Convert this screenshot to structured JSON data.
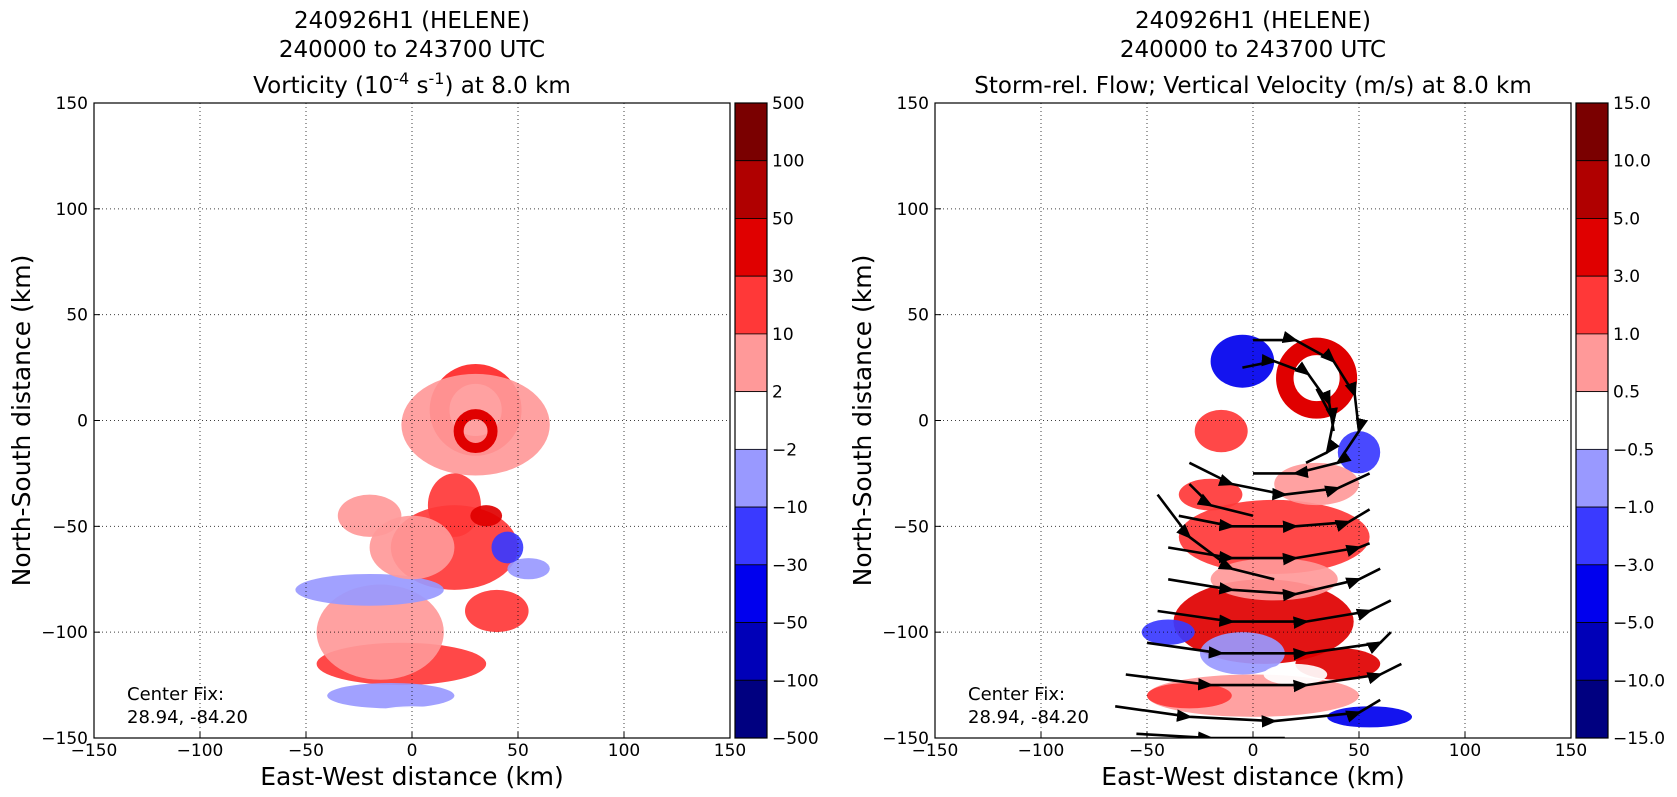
{
  "chart_data": [
    {
      "type": "heatmap",
      "title": [
        "240926H1 (HELENE)",
        "240000 to 243700 UTC"
      ],
      "subtitle": {
        "pre": "Vorticity (10",
        "exp1": "-4",
        "mid": " s",
        "exp2": "-1",
        "post": ") at 8.0 km"
      },
      "xlabel": "East-West distance (km)",
      "ylabel": "North-South distance (km)",
      "xlim": [
        -150,
        150
      ],
      "ylim": [
        -150,
        150
      ],
      "xticks": [
        -150,
        -100,
        -50,
        0,
        50,
        100,
        150
      ],
      "yticks": [
        -150,
        -100,
        -50,
        0,
        50,
        100,
        150
      ],
      "xtick_labels": [
        "−150",
        "−100",
        "−50",
        "0",
        "50",
        "100",
        "150"
      ],
      "ytick_labels": [
        "−150",
        "−100",
        "−50",
        "0",
        "50",
        "100",
        "150"
      ],
      "grid": true,
      "annotation": [
        "Center Fix:",
        "28.94, -84.20"
      ],
      "colorbar": {
        "levels": [
          "500",
          "100",
          "50",
          "30",
          "10",
          "2",
          "−2",
          "−10",
          "−30",
          "−50",
          "−100",
          "−500"
        ],
        "colors": [
          "#7a0000",
          "#b00000",
          "#e00000",
          "#ff3838",
          "#ff9999",
          "#ffffff",
          "#9999ff",
          "#3a3aff",
          "#0000ee",
          "#0000b8",
          "#000080"
        ]
      },
      "features": [
        {
          "kind": "ring",
          "cx": 30,
          "cy": 5,
          "r": 17,
          "color": "#ff3838"
        },
        {
          "kind": "blob",
          "x": 30,
          "y": -2,
          "w": 70,
          "h": 48,
          "color": "#ff9999"
        },
        {
          "kind": "ring",
          "cx": 30,
          "cy": -5,
          "r": 8,
          "color": "#e00000"
        },
        {
          "kind": "blob",
          "x": -5,
          "y": -115,
          "w": 80,
          "h": 20,
          "color": "#ff3838"
        },
        {
          "kind": "blob",
          "x": -15,
          "y": -100,
          "w": 60,
          "h": 45,
          "color": "#ff9999"
        },
        {
          "kind": "blob",
          "x": 20,
          "y": -60,
          "w": 60,
          "h": 40,
          "color": "#ff3838"
        },
        {
          "kind": "blob",
          "x": 55,
          "y": -70,
          "w": 20,
          "h": 10,
          "color": "#9999ff"
        },
        {
          "kind": "blob",
          "x": -20,
          "y": -80,
          "w": 70,
          "h": 15,
          "color": "#9999ff"
        },
        {
          "kind": "blob",
          "x": 20,
          "y": -40,
          "w": 25,
          "h": 30,
          "color": "#ff3838"
        },
        {
          "kind": "blob",
          "x": -20,
          "y": -45,
          "w": 30,
          "h": 20,
          "color": "#ff9999"
        },
        {
          "kind": "blob",
          "x": 40,
          "y": -90,
          "w": 30,
          "h": 20,
          "color": "#ff3838"
        },
        {
          "kind": "blob",
          "x": 0,
          "y": -60,
          "w": 40,
          "h": 30,
          "color": "#ff9999"
        },
        {
          "kind": "blob",
          "x": 35,
          "y": -45,
          "w": 15,
          "h": 10,
          "color": "#e00000"
        },
        {
          "kind": "blob",
          "x": 45,
          "y": -60,
          "w": 15,
          "h": 15,
          "color": "#3a3aff"
        },
        {
          "kind": "blob",
          "x": -10,
          "y": -130,
          "w": 60,
          "h": 12,
          "color": "#9999ff"
        },
        {
          "kind": "blob",
          "x": 0,
          "y": -140,
          "w": 40,
          "h": 10,
          "color": "#ffffff"
        }
      ]
    },
    {
      "type": "heatmap",
      "title": [
        "240926H1 (HELENE)",
        "240000 to 243700 UTC"
      ],
      "subtitle": {
        "pre": "Storm-rel. Flow; Vertical Velocity (m/s) at 8.0 km",
        "exp1": "",
        "mid": "",
        "exp2": "",
        "post": ""
      },
      "xlabel": "East-West distance (km)",
      "ylabel": "North-South distance (km)",
      "xlim": [
        -150,
        150
      ],
      "ylim": [
        -150,
        150
      ],
      "xticks": [
        -150,
        -100,
        -50,
        0,
        50,
        100,
        150
      ],
      "yticks": [
        -150,
        -100,
        -50,
        0,
        50,
        100,
        150
      ],
      "xtick_labels": [
        "−150",
        "−100",
        "−50",
        "0",
        "50",
        "100",
        "150"
      ],
      "ytick_labels": [
        "−150",
        "−100",
        "−50",
        "0",
        "50",
        "100",
        "150"
      ],
      "grid": true,
      "annotation": [
        "Center Fix:",
        "28.94, -84.20"
      ],
      "colorbar": {
        "levels": [
          "15.0",
          "10.0",
          "5.0",
          "3.0",
          "1.0",
          "0.5",
          "−0.5",
          "−1.0",
          "−3.0",
          "−5.0",
          "−10.0",
          "−15.0"
        ],
        "colors": [
          "#7a0000",
          "#b00000",
          "#e00000",
          "#ff3838",
          "#ff9999",
          "#ffffff",
          "#9999ff",
          "#3a3aff",
          "#0000ee",
          "#0000b8",
          "#000080"
        ]
      },
      "features": [
        {
          "kind": "blob",
          "x": -5,
          "y": 28,
          "w": 30,
          "h": 25,
          "color": "#0000ee"
        },
        {
          "kind": "blob",
          "x": -15,
          "y": -5,
          "w": 25,
          "h": 20,
          "color": "#ff3838"
        },
        {
          "kind": "ring",
          "cx": 30,
          "cy": 20,
          "r": 15,
          "color": "#e00000"
        },
        {
          "kind": "blob",
          "x": 50,
          "y": -15,
          "w": 20,
          "h": 20,
          "color": "#3a3aff"
        },
        {
          "kind": "blob",
          "x": 10,
          "y": -55,
          "w": 90,
          "h": 35,
          "color": "#ff3838"
        },
        {
          "kind": "blob",
          "x": 5,
          "y": -95,
          "w": 85,
          "h": 40,
          "color": "#e00000"
        },
        {
          "kind": "blob",
          "x": 0,
          "y": -130,
          "w": 100,
          "h": 20,
          "color": "#ff9999"
        },
        {
          "kind": "blob",
          "x": 55,
          "y": -140,
          "w": 40,
          "h": 10,
          "color": "#0000ee"
        },
        {
          "kind": "blob",
          "x": 10,
          "y": -75,
          "w": 60,
          "h": 20,
          "color": "#ff9999"
        },
        {
          "kind": "blob",
          "x": -5,
          "y": -110,
          "w": 40,
          "h": 20,
          "color": "#9999ff"
        },
        {
          "kind": "blob",
          "x": -40,
          "y": -100,
          "w": 25,
          "h": 12,
          "color": "#3a3aff"
        },
        {
          "kind": "blob",
          "x": 30,
          "y": -30,
          "w": 40,
          "h": 20,
          "color": "#ff9999"
        },
        {
          "kind": "blob",
          "x": -20,
          "y": -35,
          "w": 30,
          "h": 15,
          "color": "#ff3838"
        },
        {
          "kind": "blob",
          "x": 40,
          "y": -115,
          "w": 40,
          "h": 15,
          "color": "#e00000"
        },
        {
          "kind": "blob",
          "x": -30,
          "y": -130,
          "w": 40,
          "h": 12,
          "color": "#ff3838"
        },
        {
          "kind": "blob",
          "x": 20,
          "y": -120,
          "w": 30,
          "h": 10,
          "color": "#ffffff"
        }
      ],
      "streamlines": [
        [
          [
            0,
            38
          ],
          [
            20,
            38
          ],
          [
            38,
            28
          ],
          [
            48,
            12
          ],
          [
            50,
            -5
          ],
          [
            40,
            -20
          ],
          [
            20,
            -25
          ],
          [
            0,
            -25
          ]
        ],
        [
          [
            -5,
            25
          ],
          [
            10,
            28
          ],
          [
            26,
            22
          ],
          [
            36,
            8
          ],
          [
            38,
            -5
          ]
        ],
        [
          [
            -30,
            -20
          ],
          [
            -10,
            -30
          ],
          [
            15,
            -35
          ],
          [
            40,
            -32
          ],
          [
            55,
            -25
          ]
        ],
        [
          [
            -35,
            -45
          ],
          [
            -10,
            -50
          ],
          [
            20,
            -50
          ],
          [
            45,
            -48
          ],
          [
            55,
            -42
          ]
        ],
        [
          [
            -40,
            -60
          ],
          [
            -10,
            -65
          ],
          [
            20,
            -65
          ],
          [
            50,
            -60
          ],
          [
            55,
            -58
          ]
        ],
        [
          [
            -40,
            -75
          ],
          [
            -10,
            -80
          ],
          [
            20,
            -82
          ],
          [
            50,
            -75
          ],
          [
            60,
            -70
          ]
        ],
        [
          [
            -45,
            -90
          ],
          [
            -10,
            -95
          ],
          [
            25,
            -95
          ],
          [
            55,
            -90
          ],
          [
            65,
            -85
          ]
        ],
        [
          [
            -50,
            -105
          ],
          [
            -15,
            -110
          ],
          [
            25,
            -110
          ],
          [
            60,
            -105
          ],
          [
            65,
            -100
          ]
        ],
        [
          [
            -60,
            -120
          ],
          [
            -20,
            -125
          ],
          [
            25,
            -125
          ],
          [
            60,
            -120
          ],
          [
            70,
            -115
          ]
        ],
        [
          [
            -65,
            -135
          ],
          [
            -30,
            -140
          ],
          [
            10,
            -142
          ],
          [
            50,
            -138
          ],
          [
            60,
            -132
          ]
        ],
        [
          [
            -55,
            -148
          ],
          [
            -20,
            -150
          ],
          [
            15,
            -150
          ]
        ],
        [
          [
            -45,
            -35
          ],
          [
            -30,
            -55
          ],
          [
            -10,
            -70
          ],
          [
            10,
            -75
          ]
        ],
        [
          [
            -30,
            -30
          ],
          [
            -20,
            -40
          ],
          [
            0,
            -45
          ]
        ],
        [
          [
            30,
            15
          ],
          [
            38,
            0
          ],
          [
            35,
            -15
          ],
          [
            25,
            -20
          ]
        ]
      ]
    }
  ]
}
